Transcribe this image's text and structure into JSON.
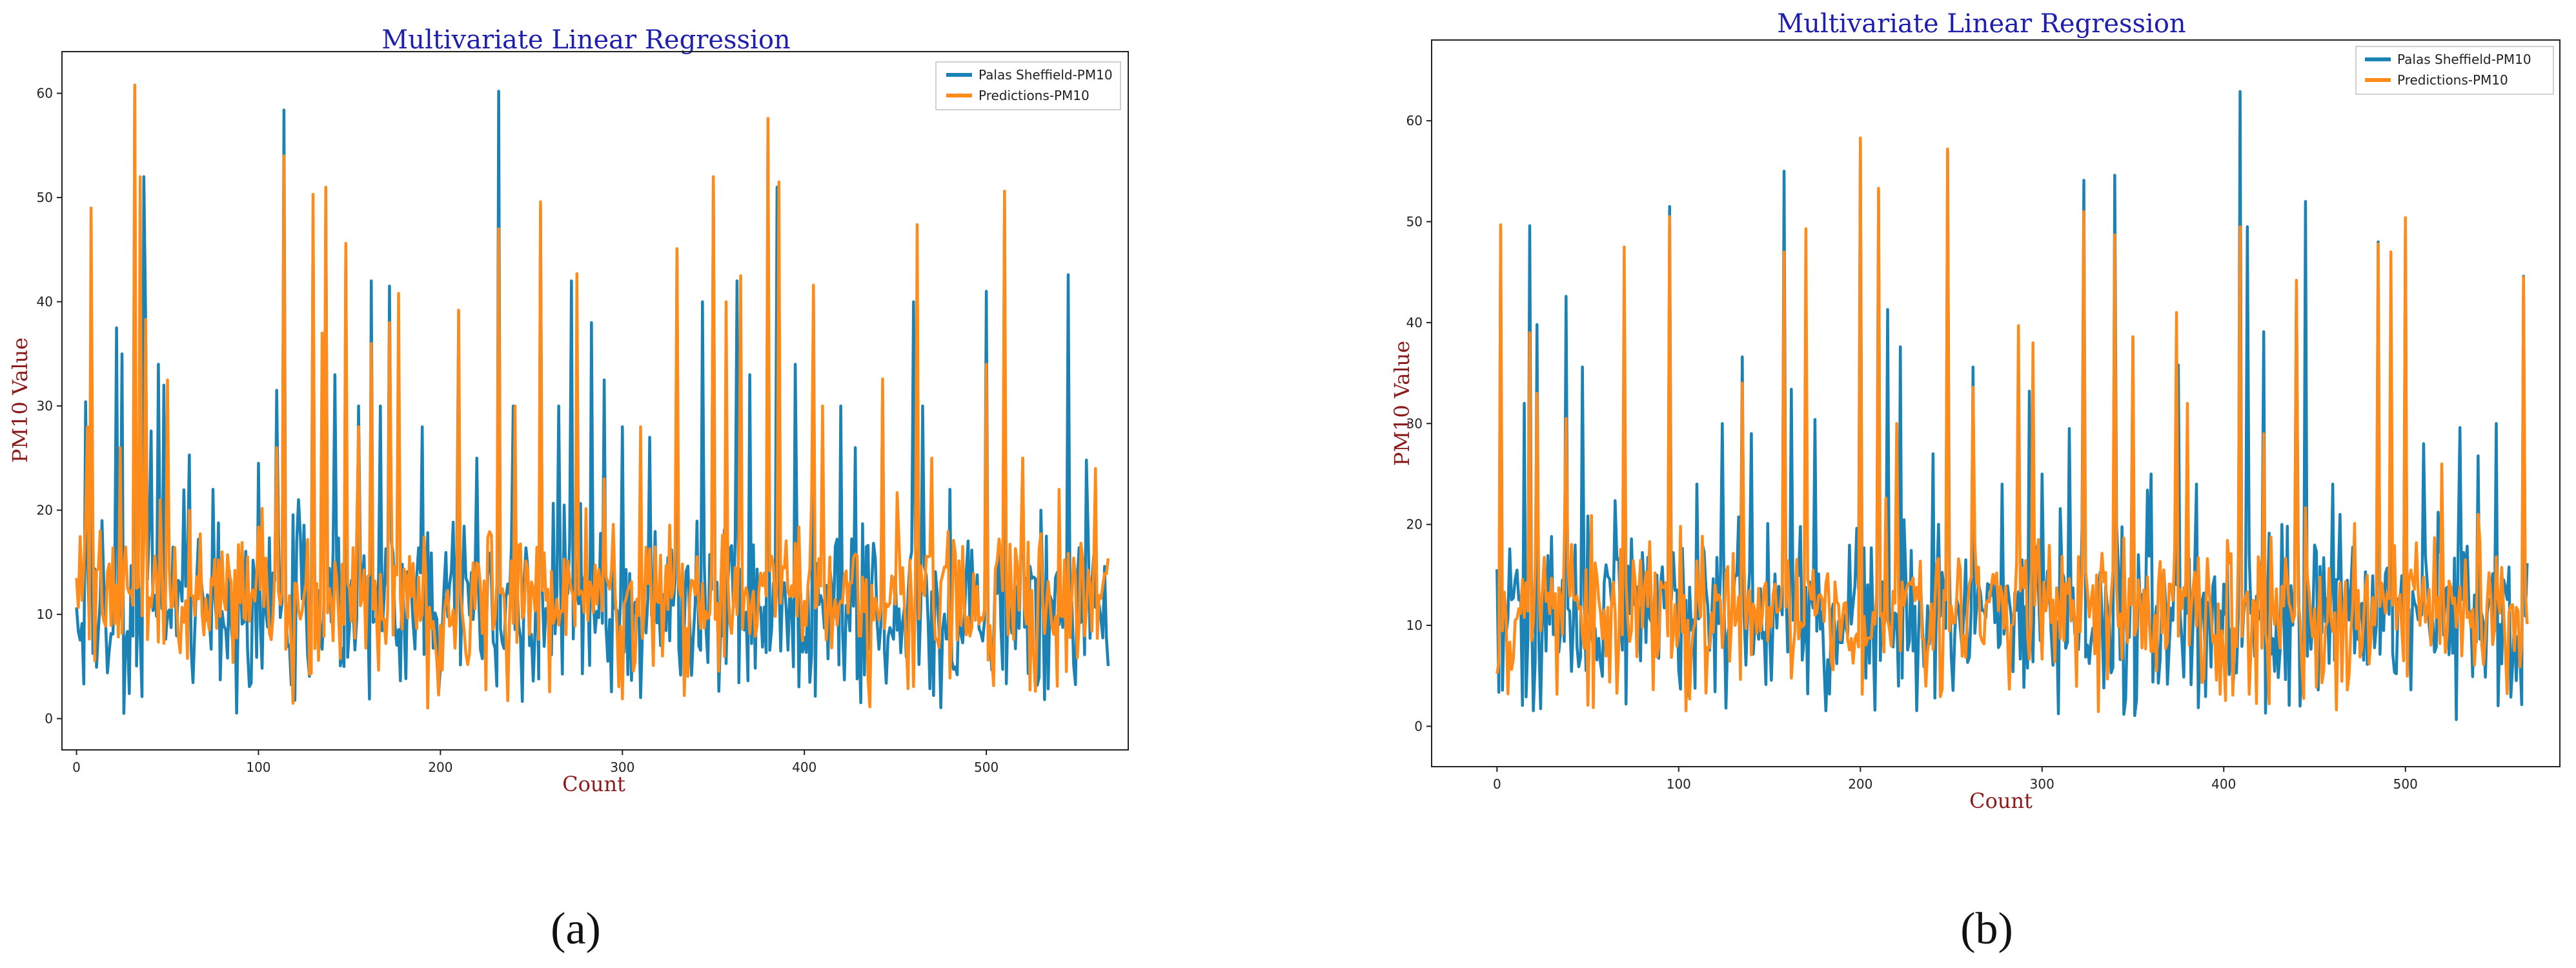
{
  "chart_data": [
    {
      "type": "line",
      "panel": "(a)",
      "title": "Multivariate Linear Regression",
      "xlabel": "Count",
      "ylabel": "PM10 Value",
      "xlim": [
        -8,
        578
      ],
      "ylim": [
        -3,
        64
      ],
      "xticks": [
        0,
        100,
        200,
        300,
        400,
        500
      ],
      "yticks": [
        0,
        10,
        20,
        30,
        40,
        50,
        60
      ],
      "legend_position": "top-right",
      "series": [
        {
          "name": "Palas Sheffield-PM10",
          "color": "#1a82b4",
          "n": 568,
          "seed": 17,
          "base": 10.5,
          "noise": 3.8,
          "peaks": [
            [
              5,
              30.4
            ],
            [
              8,
              28
            ],
            [
              14,
              19
            ],
            [
              22,
              37.5
            ],
            [
              25,
              35
            ],
            [
              32,
              60.6
            ],
            [
              37,
              52
            ],
            [
              38,
              38
            ],
            [
              45,
              34
            ],
            [
              48,
              32
            ],
            [
              62,
              25.3
            ],
            [
              75,
              22
            ],
            [
              100,
              24.5
            ],
            [
              110,
              31.5
            ],
            [
              114,
              58.4
            ],
            [
              122,
              21
            ],
            [
              130,
              48
            ],
            [
              137,
              50
            ],
            [
              142,
              33
            ],
            [
              148,
              45
            ],
            [
              155,
              30
            ],
            [
              162,
              42
            ],
            [
              167,
              30
            ],
            [
              172,
              41.5
            ],
            [
              190,
              28
            ],
            [
              210,
              39
            ],
            [
              220,
              25
            ],
            [
              232,
              60.2
            ],
            [
              240,
              30
            ],
            [
              255,
              49
            ],
            [
              265,
              30
            ],
            [
              272,
              42
            ],
            [
              283,
              38
            ],
            [
              290,
              32.5
            ],
            [
              300,
              28
            ],
            [
              315,
              27
            ],
            [
              330,
              45
            ],
            [
              344,
              40
            ],
            [
              350,
              52
            ],
            [
              363,
              42
            ],
            [
              370,
              33
            ],
            [
              380,
              57
            ],
            [
              385,
              51
            ],
            [
              395,
              34
            ],
            [
              405,
              41
            ],
            [
              420,
              30
            ],
            [
              428,
              26
            ],
            [
              443,
              32
            ],
            [
              460,
              40
            ],
            [
              465,
              30
            ],
            [
              480,
              22
            ],
            [
              500,
              41
            ],
            [
              510,
              50.6
            ],
            [
              520,
              25
            ],
            [
              530,
              20
            ],
            [
              545,
              42.6
            ],
            [
              555,
              24.8
            ],
            [
              565,
              14.6
            ]
          ]
        },
        {
          "name": "Predictions-PM10",
          "color": "#ff8c1a",
          "n": 568,
          "seed": 29,
          "base": 11.5,
          "noise": 3.0,
          "peaks": [
            [
              6,
              28
            ],
            [
              8,
              49
            ],
            [
              13,
              18
            ],
            [
              24,
              26
            ],
            [
              32,
              60.8
            ],
            [
              35,
              52
            ],
            [
              38,
              38.3
            ],
            [
              50,
              32.5
            ],
            [
              62,
              20
            ],
            [
              80,
              16
            ],
            [
              110,
              26
            ],
            [
              114,
              54
            ],
            [
              130,
              50.3
            ],
            [
              135,
              37
            ],
            [
              137,
              51
            ],
            [
              148,
              45.6
            ],
            [
              155,
              28
            ],
            [
              162,
              36
            ],
            [
              172,
              38
            ],
            [
              177,
              40.8
            ],
            [
              210,
              39.2
            ],
            [
              232,
              47
            ],
            [
              241,
              30
            ],
            [
              255,
              49.6
            ],
            [
              275,
              42.7
            ],
            [
              290,
              23
            ],
            [
              310,
              28
            ],
            [
              330,
              45.1
            ],
            [
              350,
              52
            ],
            [
              357,
              40
            ],
            [
              365,
              42.5
            ],
            [
              380,
              57.6
            ],
            [
              386,
              51.5
            ],
            [
              405,
              41.6
            ],
            [
              410,
              30
            ],
            [
              443,
              32.6
            ],
            [
              462,
              47.4
            ],
            [
              470,
              25
            ],
            [
              500,
              34
            ],
            [
              510,
              50.6
            ],
            [
              520,
              25
            ],
            [
              540,
              22
            ],
            [
              560,
              24
            ]
          ]
        }
      ]
    },
    {
      "type": "line",
      "panel": "(b)",
      "title": "Multivariate Linear Regression",
      "xlabel": "Count",
      "ylabel": "PM10 Value",
      "xlim": [
        -36,
        585
      ],
      "ylim": [
        -4,
        68
      ],
      "xticks": [
        0,
        100,
        200,
        300,
        400,
        500
      ],
      "yticks": [
        0,
        10,
        20,
        30,
        40,
        50,
        60
      ],
      "legend_position": "top-right",
      "series": [
        {
          "name": "Palas Sheffield-PM10",
          "color": "#1a82b4",
          "n": 568,
          "seed": 41,
          "base": 10.8,
          "noise": 3.7,
          "peaks": [
            [
              2,
              49.5
            ],
            [
              15,
              32
            ],
            [
              18,
              49.6
            ],
            [
              22,
              39.8
            ],
            [
              38,
              42.6
            ],
            [
              47,
              35.6
            ],
            [
              70,
              24
            ],
            [
              95,
              51.5
            ],
            [
              110,
              24
            ],
            [
              124,
              30
            ],
            [
              135,
              36.6
            ],
            [
              140,
              29
            ],
            [
              158,
              55
            ],
            [
              162,
              33.4
            ],
            [
              175,
              30.4
            ],
            [
              200,
              58
            ],
            [
              210,
              53
            ],
            [
              215,
              41.3
            ],
            [
              222,
              37.6
            ],
            [
              240,
              27
            ],
            [
              248,
              57
            ],
            [
              262,
              35.6
            ],
            [
              278,
              24
            ],
            [
              293,
              33.2
            ],
            [
              300,
              25
            ],
            [
              315,
              29.5
            ],
            [
              323,
              54.1
            ],
            [
              340,
              54.6
            ],
            [
              350,
              38.6
            ],
            [
              360,
              25
            ],
            [
              375,
              35.8
            ],
            [
              385,
              24
            ],
            [
              409,
              62.9
            ],
            [
              413,
              49.5
            ],
            [
              422,
              39.1
            ],
            [
              432,
              20
            ],
            [
              440,
              44
            ],
            [
              445,
              52
            ],
            [
              460,
              24
            ],
            [
              485,
              48
            ],
            [
              492,
              34.7
            ],
            [
              500,
              50.2
            ],
            [
              510,
              28
            ],
            [
              530,
              29.6
            ],
            [
              540,
              26.8
            ],
            [
              550,
              30
            ],
            [
              565,
              44.6
            ]
          ]
        },
        {
          "name": "Predictions-PM10",
          "color": "#ff8c1a",
          "n": 568,
          "seed": 53,
          "base": 11.5,
          "noise": 3.0,
          "peaks": [
            [
              2,
              49.7
            ],
            [
              18,
              39
            ],
            [
              22,
              33
            ],
            [
              38,
              30.5
            ],
            [
              70,
              47.5
            ],
            [
              95,
              50.5
            ],
            [
              135,
              34
            ],
            [
              158,
              47
            ],
            [
              170,
              49.3
            ],
            [
              200,
              58.3
            ],
            [
              210,
              53.3
            ],
            [
              220,
              30
            ],
            [
              248,
              57.2
            ],
            [
              262,
              33.6
            ],
            [
              287,
              39.7
            ],
            [
              295,
              38
            ],
            [
              323,
              51
            ],
            [
              340,
              48.7
            ],
            [
              350,
              38.6
            ],
            [
              374,
              41
            ],
            [
              380,
              32
            ],
            [
              409,
              49.5
            ],
            [
              422,
              29
            ],
            [
              440,
              44.2
            ],
            [
              485,
              47.8
            ],
            [
              492,
              47
            ],
            [
              500,
              50.4
            ],
            [
              520,
              26
            ],
            [
              540,
              21
            ],
            [
              565,
              44.5
            ]
          ]
        }
      ]
    }
  ],
  "panel_labels": [
    "(a)",
    "(b)"
  ]
}
